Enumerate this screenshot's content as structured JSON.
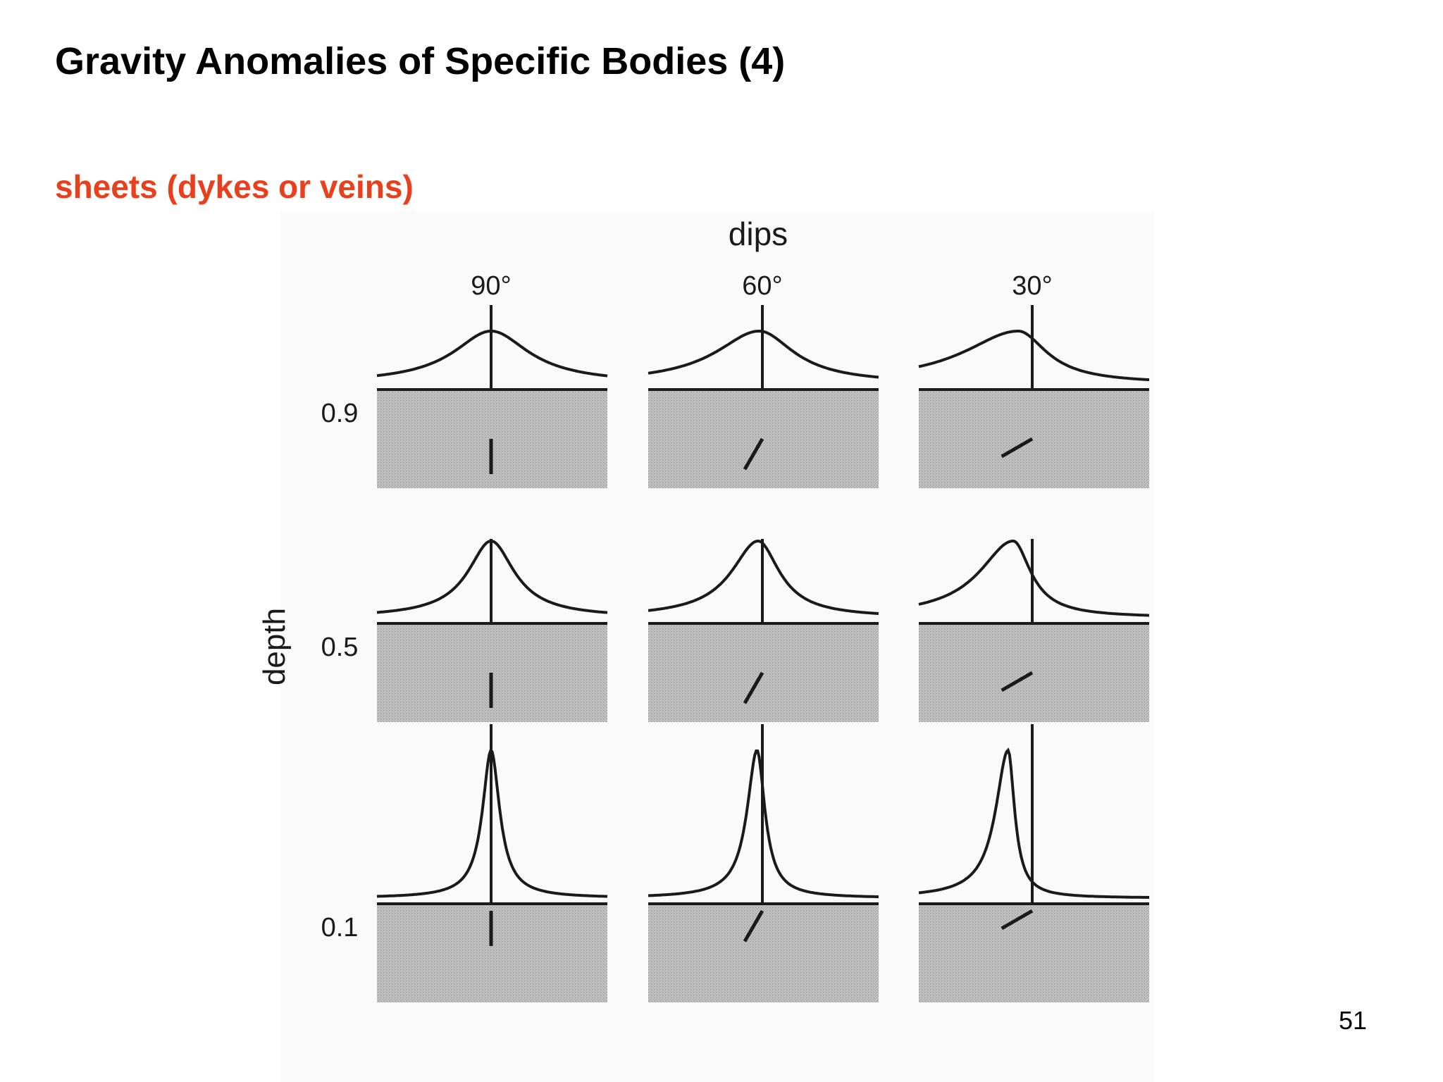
{
  "slide": {
    "title": "Gravity Anomalies of Specific Bodies (4)",
    "subtitle": "sheets (dykes or veins)",
    "page_number": "51"
  },
  "colors": {
    "subtitle": "#e8401c",
    "ground_fill": "#bdbdbd",
    "line": "#1a1a1a",
    "scan_background": "#fafafa"
  },
  "figure": {
    "top_label": "dips",
    "side_label": "depth",
    "dips": [
      "90°",
      "60°",
      "30°"
    ],
    "depths": [
      "0.9",
      "0.5",
      "0.1"
    ]
  }
}
